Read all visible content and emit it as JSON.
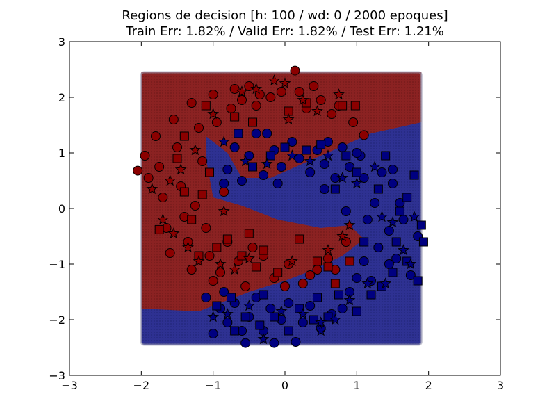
{
  "chart_data": {
    "type": "scatter",
    "title_lines": [
      "Regions de decision [h: 100 / wd: 0 / 2000 epoques]",
      "Train Err: 1.82% / Valid Err: 1.82% / Test Err: 1.21%"
    ],
    "xlabel": "",
    "ylabel": "",
    "xlim": [
      -3,
      3
    ],
    "ylim": [
      -3,
      3
    ],
    "x_ticks": [
      "−3",
      "−2",
      "−1",
      "0",
      "1",
      "2",
      "3"
    ],
    "y_ticks": [
      "−3",
      "−2",
      "−1",
      "0",
      "1",
      "2",
      "3"
    ],
    "grid": false,
    "legend": "none",
    "decision_region": {
      "x_range": [
        -2.0,
        1.9
      ],
      "y_range": [
        -2.45,
        2.45
      ],
      "red_class_region": "area above the upper boundary, plus the lower-left area above the lower boundary",
      "upper_boundary": [
        [
          -1.1,
          1.3
        ],
        [
          -0.8,
          1.0
        ],
        [
          -0.6,
          0.55
        ],
        [
          -0.2,
          0.55
        ],
        [
          0.5,
          0.95
        ],
        [
          1.2,
          1.35
        ],
        [
          1.9,
          1.55
        ]
      ],
      "lower_boundary": [
        [
          -2.0,
          -1.8
        ],
        [
          -1.2,
          -1.85
        ],
        [
          -0.5,
          -1.5
        ],
        [
          0.0,
          -1.3
        ],
        [
          0.4,
          -1.1
        ],
        [
          0.8,
          -0.85
        ],
        [
          1.1,
          -0.55
        ]
      ],
      "colors": {
        "red": "#8b2222",
        "blue": "#2e3192"
      }
    },
    "series": [
      {
        "class": "red",
        "color": "#8b0000",
        "marker": "circle",
        "points": [
          [
            -2.05,
            0.68
          ],
          [
            -1.95,
            0.95
          ],
          [
            -1.9,
            0.55
          ],
          [
            -1.8,
            1.3
          ],
          [
            -1.75,
            0.75
          ],
          [
            -1.7,
            0.2
          ],
          [
            -1.65,
            -0.35
          ],
          [
            -1.55,
            1.6
          ],
          [
            -1.5,
            1.1
          ],
          [
            -1.45,
            0.4
          ],
          [
            -1.4,
            -0.15
          ],
          [
            -1.35,
            -0.6
          ],
          [
            -1.3,
            1.9
          ],
          [
            -1.25,
            0.05
          ],
          [
            -1.2,
            1.45
          ],
          [
            -1.15,
            0.85
          ],
          [
            -1.1,
            -0.35
          ],
          [
            -1.05,
            -0.85
          ],
          [
            -1.0,
            2.05
          ],
          [
            -0.95,
            1.55
          ],
          [
            -0.9,
            -1.15
          ],
          [
            -0.85,
            0.3
          ],
          [
            -0.8,
            -0.6
          ],
          [
            -0.75,
            1.8
          ],
          [
            -0.7,
            2.15
          ],
          [
            -0.65,
            -0.95
          ],
          [
            -0.6,
            1.95
          ],
          [
            -0.5,
            2.2
          ],
          [
            -0.45,
            -0.7
          ],
          [
            -0.4,
            1.85
          ],
          [
            -0.35,
            2.05
          ],
          [
            -0.3,
            -0.85
          ],
          [
            -0.2,
            2.0
          ],
          [
            -0.15,
            -1.25
          ],
          [
            -0.05,
            2.1
          ],
          [
            0.05,
            -1.0
          ],
          [
            0.14,
            2.48
          ],
          [
            0.2,
            2.1
          ],
          [
            0.25,
            -1.35
          ],
          [
            0.3,
            1.8
          ],
          [
            0.4,
            2.2
          ],
          [
            0.45,
            -1.1
          ],
          [
            0.5,
            1.95
          ],
          [
            0.6,
            -0.9
          ],
          [
            0.65,
            1.7
          ],
          [
            0.75,
            1.85
          ],
          [
            0.85,
            -0.6
          ],
          [
            0.95,
            1.55
          ],
          [
            1.1,
            1.32
          ],
          [
            -1.6,
            -0.8
          ],
          [
            -1.3,
            -1.1
          ],
          [
            -1.0,
            -1.3
          ],
          [
            -0.55,
            -1.4
          ],
          [
            0.0,
            -1.4
          ],
          [
            0.35,
            -1.2
          ],
          [
            0.7,
            -1.1
          ]
        ]
      },
      {
        "class": "red",
        "color": "#8b0000",
        "marker": "square",
        "points": [
          [
            -1.75,
            -0.38
          ],
          [
            -1.5,
            0.9
          ],
          [
            -1.4,
            0.3
          ],
          [
            -1.3,
            -0.2
          ],
          [
            -1.2,
            -0.85
          ],
          [
            -1.15,
            0.25
          ],
          [
            -1.05,
            0.65
          ],
          [
            -0.95,
            -0.7
          ],
          [
            -0.8,
            -0.55
          ],
          [
            -0.7,
            1.65
          ],
          [
            -0.6,
            -0.85
          ],
          [
            -0.5,
            -0.45
          ],
          [
            -0.4,
            -1.05
          ],
          [
            -0.3,
            -0.75
          ],
          [
            -0.1,
            -1.15
          ],
          [
            0.2,
            -0.55
          ],
          [
            0.3,
            1.9
          ],
          [
            0.45,
            -0.95
          ],
          [
            0.6,
            -1.05
          ],
          [
            0.7,
            -1.35
          ],
          [
            0.8,
            1.85
          ],
          [
            0.9,
            -0.95
          ],
          [
            0.98,
            1.85
          ],
          [
            -1.4,
            1.3
          ],
          [
            -1.1,
            1.85
          ],
          [
            -0.45,
            1.55
          ],
          [
            0.05,
            1.75
          ]
        ]
      },
      {
        "class": "red",
        "color": "#8b0000",
        "marker": "star",
        "points": [
          [
            -1.85,
            0.35
          ],
          [
            -1.7,
            -0.2
          ],
          [
            -1.6,
            0.5
          ],
          [
            -1.55,
            -0.45
          ],
          [
            -1.45,
            0.7
          ],
          [
            -1.35,
            -0.7
          ],
          [
            -1.25,
            1.05
          ],
          [
            -1.2,
            -0.95
          ],
          [
            -1.0,
            1.7
          ],
          [
            -0.9,
            -1.0
          ],
          [
            -0.85,
            -0.05
          ],
          [
            -0.7,
            -1.1
          ],
          [
            -0.6,
            2.1
          ],
          [
            -0.5,
            -0.9
          ],
          [
            -0.4,
            2.15
          ],
          [
            -0.15,
            2.3
          ],
          [
            0.0,
            2.25
          ],
          [
            0.1,
            -0.95
          ],
          [
            0.25,
            1.95
          ],
          [
            0.45,
            1.75
          ],
          [
            0.6,
            -0.75
          ],
          [
            0.75,
            2.05
          ],
          [
            0.8,
            -0.5
          ],
          [
            0.9,
            -0.3
          ],
          [
            0.05,
            1.6
          ]
        ]
      },
      {
        "class": "blue",
        "color": "#000080",
        "marker": "circle",
        "points": [
          [
            -1.1,
            -1.6
          ],
          [
            -1.0,
            -2.25
          ],
          [
            -0.9,
            -1.8
          ],
          [
            -0.85,
            -1.5
          ],
          [
            -0.8,
            -2.05
          ],
          [
            -0.7,
            -1.7
          ],
          [
            -0.6,
            -2.2
          ],
          [
            -0.55,
            -2.42
          ],
          [
            -0.5,
            -1.95
          ],
          [
            -0.4,
            -1.6
          ],
          [
            -0.3,
            -2.2
          ],
          [
            -0.2,
            -1.8
          ],
          [
            -0.15,
            -2.42
          ],
          [
            -0.05,
            -2.0
          ],
          [
            0.05,
            -1.7
          ],
          [
            0.15,
            -2.4
          ],
          [
            0.25,
            -2.05
          ],
          [
            0.35,
            -1.75
          ],
          [
            0.5,
            -2.15
          ],
          [
            0.65,
            -1.9
          ],
          [
            0.8,
            -1.8
          ],
          [
            0.9,
            -1.5
          ],
          [
            1.0,
            -1.25
          ],
          [
            1.1,
            -0.95
          ],
          [
            1.2,
            -1.3
          ],
          [
            1.3,
            -0.7
          ],
          [
            1.45,
            -0.4
          ],
          [
            1.55,
            -0.9
          ],
          [
            1.65,
            -0.2
          ],
          [
            1.75,
            -1.2
          ],
          [
            1.85,
            -0.5
          ],
          [
            1.6,
            0.1
          ],
          [
            1.5,
            0.45
          ],
          [
            1.35,
            0.65
          ],
          [
            1.25,
            0.1
          ],
          [
            1.1,
            0.55
          ],
          [
            1.05,
            0.95
          ],
          [
            0.9,
            0.75
          ],
          [
            0.8,
            1.1
          ],
          [
            0.7,
            0.55
          ],
          [
            0.55,
            0.8
          ],
          [
            0.45,
            1.05
          ],
          [
            0.35,
            0.65
          ],
          [
            0.2,
            0.9
          ],
          [
            0.1,
            1.2
          ],
          [
            -0.05,
            0.75
          ],
          [
            -0.15,
            1.05
          ],
          [
            -0.3,
            0.6
          ],
          [
            -0.4,
            1.35
          ],
          [
            -0.5,
            0.95
          ],
          [
            -0.6,
            0.5
          ],
          [
            -0.7,
            1.1
          ],
          [
            -0.8,
            0.7
          ],
          [
            -0.85,
            0.45
          ],
          [
            -0.1,
            0.45
          ],
          [
            0.55,
            0.35
          ],
          [
            1.45,
            -1.0
          ],
          [
            1.15,
            -0.2
          ],
          [
            0.85,
            -0.05
          ],
          [
            1.5,
            0.7
          ],
          [
            1.0,
            1.0
          ],
          [
            0.6,
            1.2
          ],
          [
            -0.25,
            1.35
          ]
        ]
      },
      {
        "class": "blue",
        "color": "#000080",
        "marker": "square",
        "points": [
          [
            -0.65,
            1.35
          ],
          [
            -0.45,
            0.75
          ],
          [
            -0.2,
            0.95
          ],
          [
            0.0,
            1.1
          ],
          [
            0.3,
            1.05
          ],
          [
            0.5,
            1.15
          ],
          [
            0.7,
            0.35
          ],
          [
            0.85,
            0.95
          ],
          [
            1.0,
            0.65
          ],
          [
            1.1,
            -0.6
          ],
          [
            1.3,
            0.35
          ],
          [
            1.4,
            0.95
          ],
          [
            1.55,
            -0.6
          ],
          [
            1.7,
            -0.95
          ],
          [
            1.8,
            0.6
          ],
          [
            1.9,
            -0.3
          ],
          [
            1.93,
            -0.6
          ],
          [
            1.85,
            -1.3
          ],
          [
            1.5,
            -1.15
          ],
          [
            1.2,
            -1.55
          ],
          [
            1.0,
            -1.85
          ],
          [
            0.75,
            -1.55
          ],
          [
            0.6,
            -1.95
          ],
          [
            0.45,
            -1.6
          ],
          [
            0.2,
            -1.8
          ],
          [
            0.05,
            -2.2
          ],
          [
            -0.15,
            -1.95
          ],
          [
            -0.35,
            -2.1
          ],
          [
            -0.55,
            -1.95
          ],
          [
            -0.75,
            -1.6
          ],
          [
            -0.95,
            -1.75
          ],
          [
            -0.7,
            -2.2
          ],
          [
            -0.3,
            -1.55
          ],
          [
            0.4,
            -2.0
          ],
          [
            1.35,
            -1.4
          ],
          [
            1.7,
            0.2
          ],
          [
            1.6,
            -0.05
          ]
        ]
      },
      {
        "class": "blue",
        "color": "#000080",
        "marker": "star",
        "points": [
          [
            -0.85,
            1.2
          ],
          [
            -0.55,
            0.85
          ],
          [
            -0.25,
            0.8
          ],
          [
            0.1,
            0.95
          ],
          [
            0.35,
            0.85
          ],
          [
            0.6,
            0.95
          ],
          [
            0.8,
            0.55
          ],
          [
            1.0,
            0.45
          ],
          [
            1.25,
            0.75
          ],
          [
            1.35,
            -0.15
          ],
          [
            1.5,
            -0.25
          ],
          [
            1.65,
            -0.75
          ],
          [
            1.8,
            -0.15
          ],
          [
            1.75,
            -1.0
          ],
          [
            1.4,
            -1.35
          ],
          [
            1.15,
            -1.35
          ],
          [
            0.9,
            -1.65
          ],
          [
            0.7,
            -2.0
          ],
          [
            0.5,
            -2.2
          ],
          [
            0.25,
            -1.9
          ],
          [
            -0.05,
            -1.85
          ],
          [
            -0.3,
            -2.35
          ],
          [
            -0.5,
            -1.75
          ],
          [
            -0.8,
            -1.9
          ],
          [
            -1.0,
            -1.95
          ],
          [
            0.5,
            -2.05
          ]
        ]
      }
    ]
  }
}
